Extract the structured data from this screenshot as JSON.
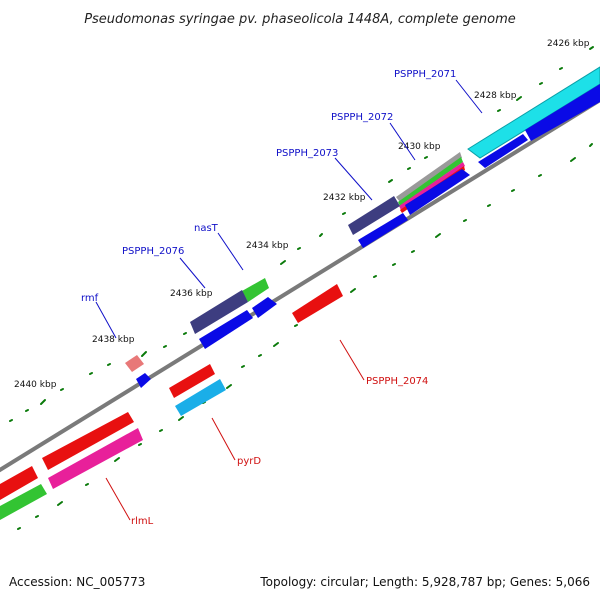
{
  "title": "Pseudomonas syringae pv. phaseolicola 1448A, complete genome",
  "footer": {
    "accession": "Accession: NC_005773",
    "summary": "Topology: circular; Length: 5,928,787 bp; Genes: 5,066"
  },
  "kbp_labels": [
    "2426 kbp",
    "2428 kbp",
    "2430 kbp",
    "2432 kbp",
    "2434 kbp",
    "2436 kbp",
    "2438 kbp",
    "2440 kbp"
  ],
  "gene_labels": {
    "pspph_2071": "PSPPH_2071",
    "pspph_2072": "PSPPH_2072",
    "pspph_2073": "PSPPH_2073",
    "nast": "nasT",
    "pspph_2076": "PSPPH_2076",
    "rmf": "rmf",
    "pspph_2074": "PSPPH_2074",
    "pyrd": "pyrD",
    "rlml": "rlmL"
  },
  "colors": {
    "backbone": "#7a7a7a",
    "tick": "#0a7a0a",
    "label_plus": "#1010c8",
    "label_minus": "#d01010",
    "cyan": "#1de0e8",
    "blue": "#0a0ae6",
    "slate": "#3d3d80",
    "green": "#33c433",
    "red": "#e81010",
    "pink": "#e8209a",
    "salmon": "#e87878",
    "skyblue": "#1aaee8"
  }
}
